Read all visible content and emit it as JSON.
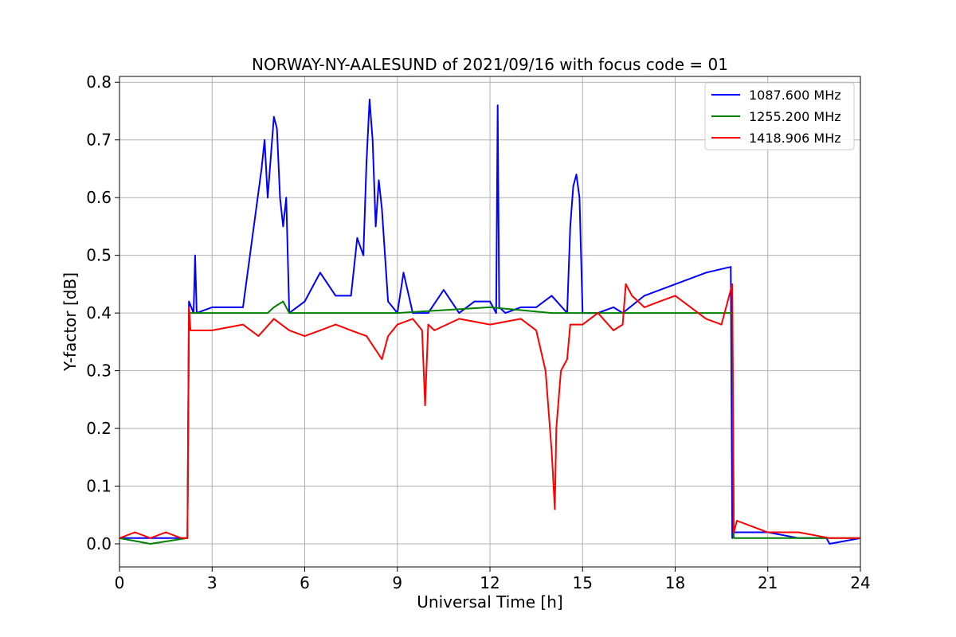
{
  "chart_data": {
    "type": "line",
    "title": "NORWAY-NY-AALESUND of 2021/09/16 with focus code = 01",
    "xlabel": "Universal Time [h]",
    "ylabel": "Y-factor [dB]",
    "xlim": [
      0,
      24
    ],
    "ylim": [
      -0.04,
      0.81
    ],
    "xticks": [
      0,
      3,
      6,
      9,
      12,
      15,
      18,
      21,
      24
    ],
    "xtick_labels": [
      "0",
      "3",
      "6",
      "9",
      "12",
      "15",
      "18",
      "21",
      "24"
    ],
    "yticks": [
      0.0,
      0.1,
      0.2,
      0.3,
      0.4,
      0.5,
      0.6,
      0.7,
      0.8
    ],
    "ytick_labels": [
      "0.0",
      "0.1",
      "0.2",
      "0.3",
      "0.4",
      "0.5",
      "0.6",
      "0.7",
      "0.8"
    ],
    "grid": true,
    "legend_position": "top-right",
    "series": [
      {
        "name": "1087.600 MHz",
        "color": "#0000ff",
        "x": [
          0,
          2.2,
          2.25,
          2.4,
          2.45,
          2.5,
          3.0,
          4.0,
          4.6,
          4.7,
          4.8,
          4.9,
          5.0,
          5.1,
          5.2,
          5.3,
          5.4,
          5.5,
          6.0,
          6.3,
          6.5,
          7.0,
          7.5,
          7.7,
          7.9,
          8.0,
          8.1,
          8.2,
          8.3,
          8.4,
          8.5,
          8.7,
          9.0,
          9.2,
          9.5,
          10.0,
          10.5,
          11.0,
          11.5,
          12.0,
          12.2,
          12.25,
          12.3,
          12.5,
          13.0,
          13.5,
          14.0,
          14.5,
          14.6,
          14.7,
          14.8,
          14.9,
          15.0,
          15.5,
          16.0,
          16.3,
          17.0,
          18.0,
          19.0,
          19.8,
          19.85,
          19.9,
          21.0,
          22.0,
          22.9,
          23.0,
          24.0
        ],
        "y": [
          0.01,
          0.01,
          0.42,
          0.4,
          0.5,
          0.4,
          0.41,
          0.41,
          0.65,
          0.7,
          0.6,
          0.67,
          0.74,
          0.72,
          0.6,
          0.55,
          0.6,
          0.4,
          0.42,
          0.45,
          0.47,
          0.43,
          0.43,
          0.53,
          0.5,
          0.66,
          0.77,
          0.7,
          0.55,
          0.63,
          0.58,
          0.42,
          0.4,
          0.47,
          0.4,
          0.4,
          0.44,
          0.4,
          0.42,
          0.42,
          0.4,
          0.76,
          0.41,
          0.4,
          0.41,
          0.41,
          0.43,
          0.4,
          0.55,
          0.62,
          0.64,
          0.6,
          0.4,
          0.4,
          0.41,
          0.4,
          0.43,
          0.45,
          0.47,
          0.48,
          0.01,
          0.02,
          0.02,
          0.01,
          0.01,
          0.0,
          0.01
        ]
      },
      {
        "name": "1255.200 MHz",
        "color": "#008000",
        "x": [
          0,
          1.0,
          2.2,
          2.25,
          3.0,
          4.8,
          5.0,
          5.3,
          5.5,
          6.0,
          9.0,
          12.0,
          14.0,
          16.3,
          19.85,
          19.9,
          24.0
        ],
        "y": [
          0.01,
          0.0,
          0.01,
          0.4,
          0.4,
          0.4,
          0.41,
          0.42,
          0.4,
          0.4,
          0.4,
          0.41,
          0.4,
          0.4,
          0.4,
          0.01,
          0.01
        ]
      },
      {
        "name": "1418.906 MHz",
        "color": "#ff0000",
        "x": [
          0,
          0.5,
          1.0,
          1.5,
          2.0,
          2.2,
          2.25,
          2.3,
          3.0,
          4.0,
          4.5,
          5.0,
          5.5,
          6.0,
          6.5,
          7.0,
          7.5,
          8.0,
          8.5,
          8.7,
          9.0,
          9.5,
          9.8,
          9.9,
          10.0,
          10.2,
          11.0,
          12.0,
          13.0,
          13.5,
          13.8,
          14.0,
          14.1,
          14.15,
          14.3,
          14.5,
          14.6,
          15.0,
          15.5,
          16.0,
          16.3,
          16.4,
          16.6,
          17.0,
          17.5,
          18.0,
          18.5,
          19.0,
          19.5,
          19.85,
          19.9,
          20.0,
          20.5,
          21.0,
          22.0,
          23.0,
          24.0
        ],
        "y": [
          0.01,
          0.02,
          0.01,
          0.02,
          0.01,
          0.01,
          0.41,
          0.37,
          0.37,
          0.38,
          0.36,
          0.39,
          0.37,
          0.36,
          0.37,
          0.38,
          0.37,
          0.36,
          0.32,
          0.36,
          0.38,
          0.39,
          0.37,
          0.24,
          0.38,
          0.37,
          0.39,
          0.38,
          0.39,
          0.37,
          0.3,
          0.16,
          0.06,
          0.2,
          0.3,
          0.32,
          0.38,
          0.38,
          0.4,
          0.37,
          0.38,
          0.45,
          0.43,
          0.41,
          0.42,
          0.43,
          0.41,
          0.39,
          0.38,
          0.45,
          0.02,
          0.04,
          0.03,
          0.02,
          0.02,
          0.01,
          0.01
        ]
      }
    ]
  }
}
